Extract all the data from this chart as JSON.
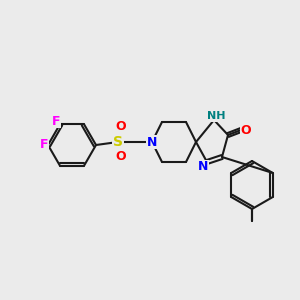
{
  "bg_color": "#ebebeb",
  "bond_color": "#1a1a1a",
  "bond_lw": 1.5,
  "atom_colors": {
    "F": "#ff00ff",
    "S": "#cccc00",
    "N": "#0000ff",
    "O": "#ff0000",
    "NH": "#008080",
    "C": "#1a1a1a"
  },
  "font_size": 9,
  "fig_size": [
    3.0,
    3.0
  ],
  "dpi": 100
}
